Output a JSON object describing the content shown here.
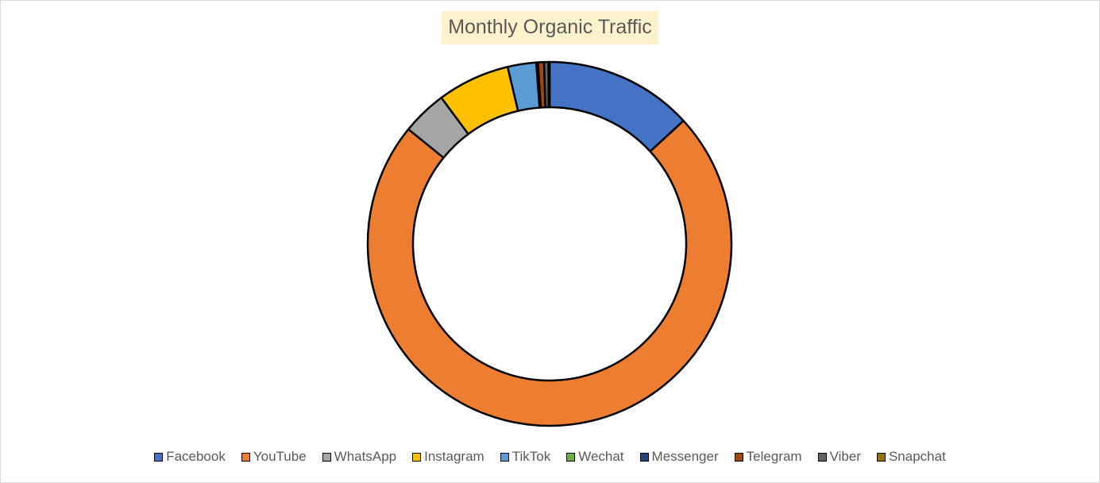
{
  "chart_data": {
    "type": "pie",
    "variant": "donut",
    "title": "Monthly Organic Traffic",
    "legend_position": "bottom",
    "categories": [
      "Facebook",
      "YouTube",
      "WhatsApp",
      "Instagram",
      "TikTok",
      "Wechat",
      "Messenger",
      "Telegram",
      "Viber",
      "Snapchat"
    ],
    "values": [
      13.5,
      74.5,
      4.1,
      6.6,
      2.6,
      0.05,
      0.1,
      0.55,
      0.4,
      0.1
    ],
    "colors": [
      "#4472c4",
      "#ed7d31",
      "#a5a5a5",
      "#ffc000",
      "#5b9bd5",
      "#70ad47",
      "#264478",
      "#9e480e",
      "#636363",
      "#997300"
    ]
  }
}
